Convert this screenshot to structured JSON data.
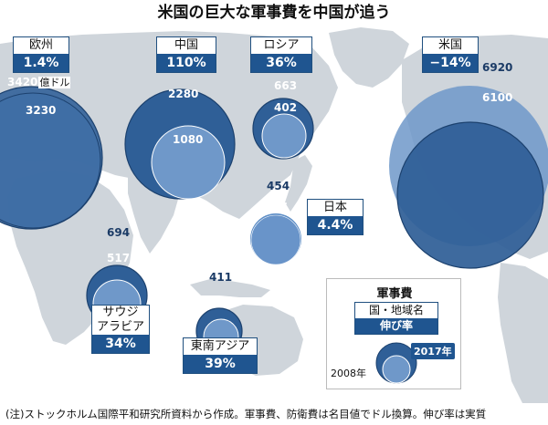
{
  "title": "米国の巨大な軍事費を中国が追う",
  "regions": [
    {
      "id": "europe",
      "name": "欧州",
      "rate": "1.4%",
      "v2017": "3420",
      "v2008": "3230",
      "unit": "億ドル"
    },
    {
      "id": "china",
      "name": "中国",
      "rate": "110%",
      "v2017": "2280",
      "v2008": "1080"
    },
    {
      "id": "russia",
      "name": "ロシア",
      "rate": "36%",
      "v2017": "663",
      "v2008": "402"
    },
    {
      "id": "usa",
      "name": "米国",
      "rate": "−14%",
      "v2017": "6100",
      "v2008": "6920"
    },
    {
      "id": "japan",
      "name": "日本",
      "rate": "4.4%",
      "v2017": "454",
      "v2008": "446"
    },
    {
      "id": "saudi",
      "name1": "サウジ",
      "name2": "アラビア",
      "rate": "34%",
      "v2017": "694",
      "v2008": "517"
    },
    {
      "id": "sea",
      "name": "東南アジア",
      "rate": "39%",
      "v2017": "411",
      "v2008": "291"
    }
  ],
  "legend": {
    "title": "軍事費",
    "name": "国・地域名",
    "rate": "伸び率",
    "year_new": "2017年",
    "year_old": "2008年"
  },
  "colors": {
    "ocean": "#ffffff",
    "land": "#cfd5db",
    "circle_new": "#2f5f97",
    "circle_old": "#5f8fc7",
    "accent": "#1f5590"
  },
  "footnote": "(注)ストックホルム国際平和研究所資料から作成。軍事費、防衛費は名目値でドル換算。伸び率は実質"
}
